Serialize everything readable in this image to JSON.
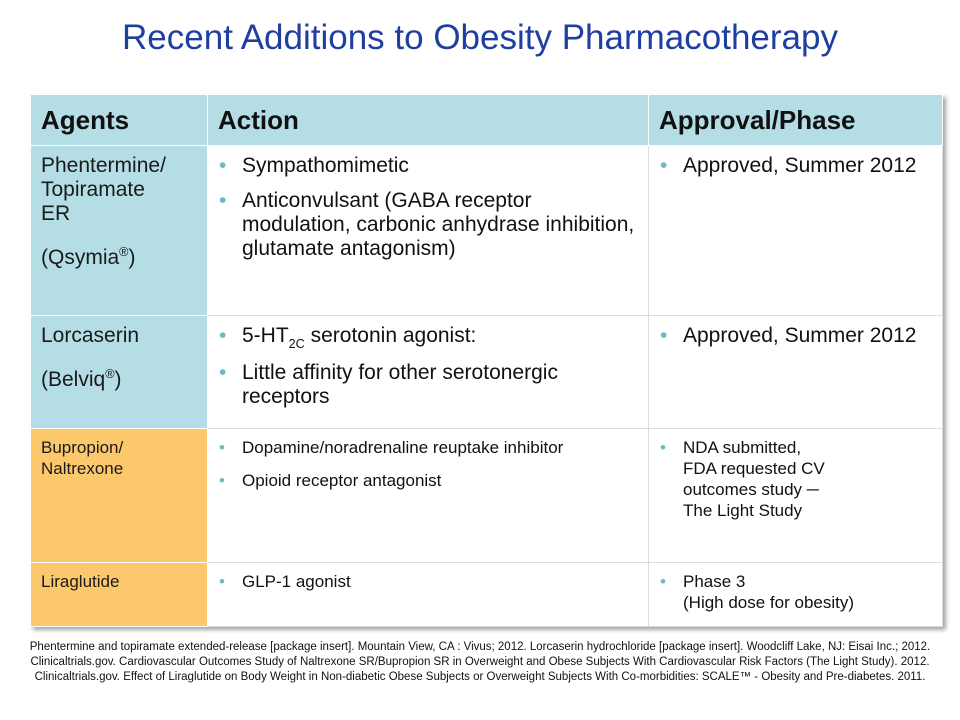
{
  "title": "Recent Additions to Obesity Pharmacotherapy",
  "table": {
    "headers": [
      "Agents",
      "Action",
      "Approval/Phase"
    ],
    "rows": [
      {
        "agent_lines": [
          "Phentermine/",
          "Topiramate",
          "ER"
        ],
        "brand_name": "(Qsymia",
        "brand_mark": "®",
        "brand_close": ")",
        "actions": [
          "Sympathomimetic",
          "Anticonvulsant (GABA receptor modulation, carbonic anhydrase inhibition, glutamate antagonism)"
        ],
        "approval": [
          "Approved, Summer 2012"
        ]
      },
      {
        "agent_lines": [
          "Lorcaserin"
        ],
        "brand_name": "(Belviq",
        "brand_mark": "®",
        "brand_close": ")",
        "action1_pre": "5-HT",
        "action1_sub": "2C",
        "action1_post": " serotonin agonist:",
        "action2": " Little affinity for other serotonergic receptors",
        "approval": [
          "Approved, Summer 2012"
        ]
      },
      {
        "agent_lines": [
          "Bupropion/",
          "Naltrexone"
        ],
        "actions": [
          "Dopamine/noradrenaline  reuptake inhibitor",
          "Opioid receptor antagonist"
        ],
        "approval": [
          "NDA submitted,",
          "FDA requested CV",
          "outcomes study ─",
          "The Light Study"
        ]
      },
      {
        "agent_lines": [
          "Liraglutide"
        ],
        "actions": [
          "GLP-1 agonist"
        ],
        "approval": [
          "Phase 3",
          "(High dose for obesity)"
        ]
      }
    ]
  },
  "footnote": "Phentermine  and topiramate extended-release [package insert]. Mountain View, CA : Vivus; 2012.      Lorcaserin hydrochloride [package insert]. Woodcliff Lake, NJ: Eisai Inc.; 2012.        Clinicaltrials.gov. Cardiovascular Outcomes Study of Naltrexone SR/Bupropion SR in Overweight and Obese Subjects With Cardiovascular Risk Factors (The Light Study). 2012.          Clinicaltrials.gov. Effect of Liraglutide on Body Weight in Non-diabetic Obese Subjects or Overweight Subjects With Co-morbidities: SCALE™ - Obesity and Pre-diabetes. 2011.",
  "colors": {
    "title": "#1f3fa0",
    "header_bg": "#b4dde6",
    "agent_blue": "#b4dde6",
    "agent_orange": "#fcc86c",
    "bullet": "#6fb8c8"
  }
}
